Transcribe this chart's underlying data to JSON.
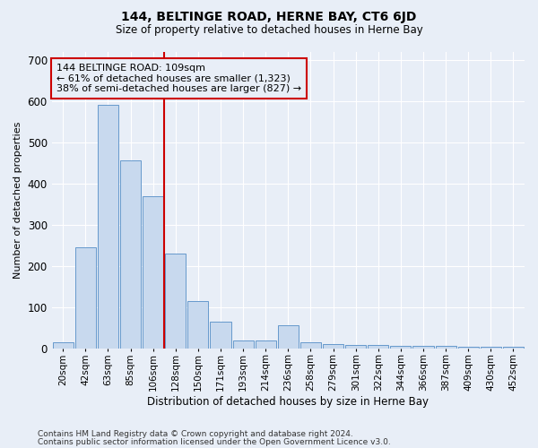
{
  "title": "144, BELTINGE ROAD, HERNE BAY, CT6 6JD",
  "subtitle": "Size of property relative to detached houses in Herne Bay",
  "xlabel": "Distribution of detached houses by size in Herne Bay",
  "ylabel": "Number of detached properties",
  "categories": [
    "20sqm",
    "42sqm",
    "63sqm",
    "85sqm",
    "106sqm",
    "128sqm",
    "150sqm",
    "171sqm",
    "193sqm",
    "214sqm",
    "236sqm",
    "258sqm",
    "279sqm",
    "301sqm",
    "322sqm",
    "344sqm",
    "366sqm",
    "387sqm",
    "409sqm",
    "430sqm",
    "452sqm"
  ],
  "values": [
    15,
    245,
    590,
    455,
    370,
    230,
    115,
    65,
    20,
    20,
    55,
    15,
    10,
    8,
    8,
    5,
    5,
    5,
    3,
    3,
    3
  ],
  "bar_color": "#c8d9ee",
  "bar_edge_color": "#6699cc",
  "bg_color": "#e8eef7",
  "vline_x_idx": 5,
  "vline_color": "#cc0000",
  "annotation_text": "144 BELTINGE ROAD: 109sqm\n← 61% of detached houses are smaller (1,323)\n38% of semi-detached houses are larger (827) →",
  "annotation_box_color": "#cc0000",
  "ylim": [
    0,
    720
  ],
  "yticks": [
    0,
    100,
    200,
    300,
    400,
    500,
    600,
    700
  ],
  "footer1": "Contains HM Land Registry data © Crown copyright and database right 2024.",
  "footer2": "Contains public sector information licensed under the Open Government Licence v3.0."
}
